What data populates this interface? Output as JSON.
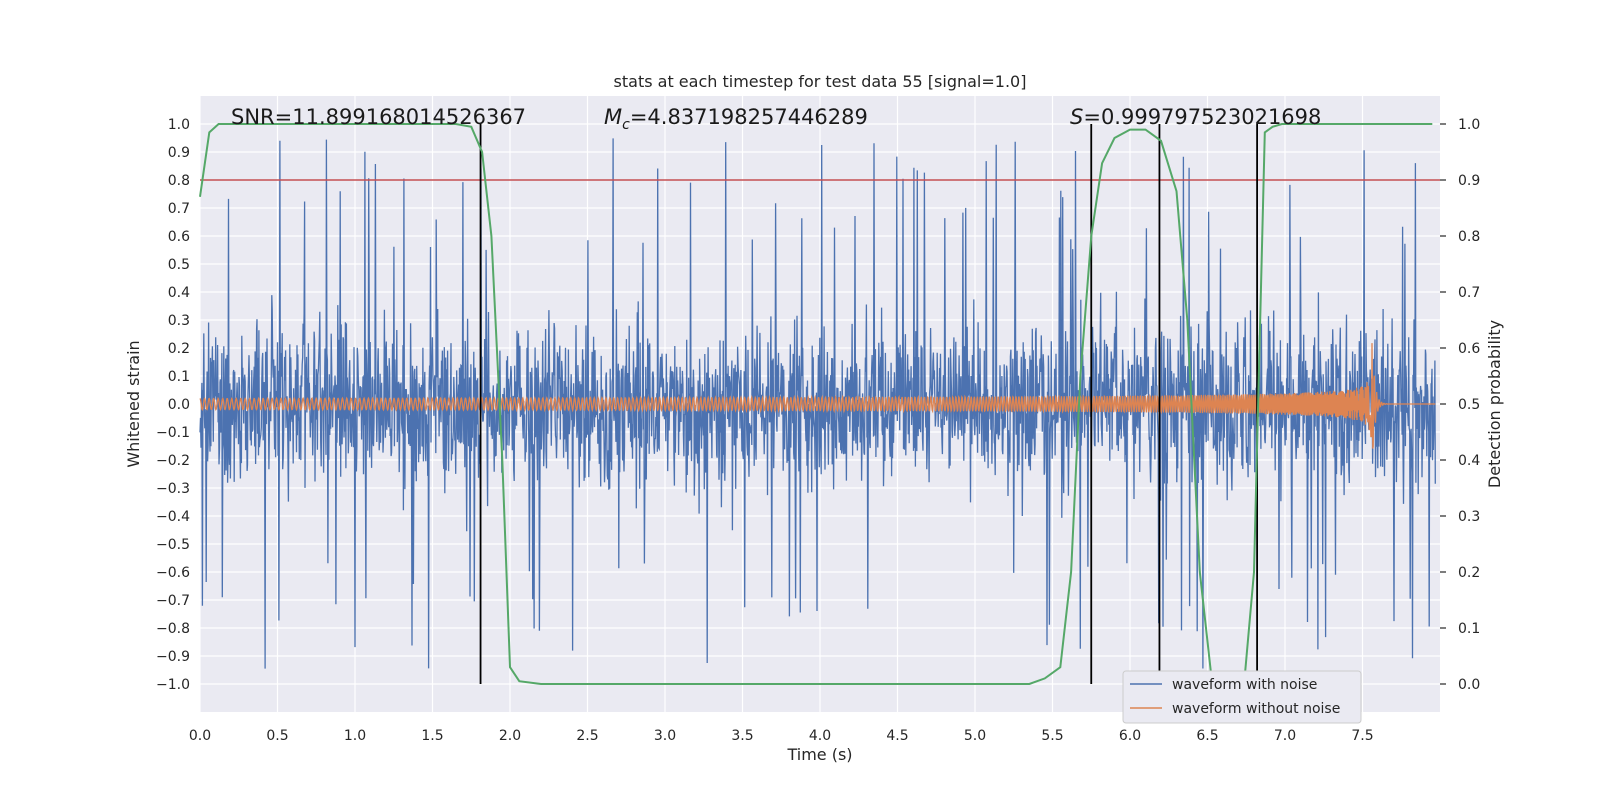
{
  "chart_data": {
    "type": "line",
    "title": "stats at each timestep for test data 55 [signal=1.0]",
    "xlabel": "Time (s)",
    "ylabel": "Whitened strain",
    "ylabel_right": "Detection probability",
    "xlim": [
      0.0,
      8.0
    ],
    "ylim": [
      -1.1,
      1.1
    ],
    "ylim_right": [
      -0.05,
      1.05
    ],
    "x_ticks": [
      "0.0",
      "0.5",
      "1.0",
      "1.5",
      "2.0",
      "2.5",
      "3.0",
      "3.5",
      "4.0",
      "4.5",
      "5.0",
      "5.5",
      "6.0",
      "6.5",
      "7.0",
      "7.5"
    ],
    "y_ticks": [
      "1.0",
      "0.9",
      "0.8",
      "0.7",
      "0.6",
      "0.5",
      "0.4",
      "0.3",
      "0.2",
      "0.1",
      "0.0",
      "−0.1",
      "−0.2",
      "−0.3",
      "−0.4",
      "−0.5",
      "−0.6",
      "−0.7",
      "−0.8",
      "−0.9",
      "−1.0"
    ],
    "y_right_ticks": [
      "1.0",
      "0.9",
      "0.8",
      "0.7",
      "0.6",
      "0.5",
      "0.4",
      "0.3",
      "0.2",
      "0.1",
      "0.0"
    ],
    "grid": true,
    "annotations": {
      "snr": "SNR=11.899168014526367",
      "mc_symbol": "M",
      "mc_sub": "c",
      "mc_value": "=4.837198257446289",
      "s_symbol": "S",
      "s_value": "=0.999797523021698"
    },
    "threshold_right": 0.9,
    "threshold_color": "#c44e52",
    "vertical_lines_x": [
      1.81,
      5.75,
      6.19,
      6.82
    ],
    "series": [
      {
        "name": "waveform with noise",
        "color": "#4c72b0",
        "description": "dense whitened noise, typical amplitude about ±0.4 with spikes up to ±0.95",
        "typical_amplitude": 0.4,
        "peak_amplitude": 0.95
      },
      {
        "name": "waveform without noise",
        "color": "#dd8452",
        "description": "chirp signal growing from ±0.02 to peak ±0.28 near t=7.56 s",
        "start_amplitude": 0.02,
        "peak_amplitude": 0.28,
        "merger_time": 7.56
      },
      {
        "name": "detection probability",
        "color": "#55a868",
        "axis": "right",
        "x": [
          0.0,
          0.06,
          0.12,
          0.3,
          0.6,
          1.0,
          1.4,
          1.65,
          1.75,
          1.82,
          1.88,
          1.95,
          2.0,
          2.06,
          2.2,
          2.5,
          3.0,
          4.0,
          5.0,
          5.35,
          5.45,
          5.55,
          5.62,
          5.68,
          5.75,
          5.82,
          5.9,
          6.0,
          6.1,
          6.2,
          6.3,
          6.37,
          6.45,
          6.55,
          6.62,
          6.72,
          6.8,
          6.87,
          6.92,
          6.98,
          7.1,
          7.5,
          7.95
        ],
        "values": [
          0.87,
          0.985,
          1.0,
          1.0,
          1.0,
          1.0,
          1.0,
          1.0,
          0.995,
          0.95,
          0.8,
          0.4,
          0.03,
          0.005,
          0.0,
          0.0,
          0.0,
          0.0,
          0.0,
          0.0,
          0.01,
          0.03,
          0.2,
          0.55,
          0.8,
          0.93,
          0.975,
          0.99,
          0.99,
          0.97,
          0.88,
          0.65,
          0.2,
          -0.05,
          -0.05,
          -0.05,
          0.2,
          0.985,
          0.995,
          1.0,
          1.0,
          1.0,
          1.0
        ]
      }
    ],
    "legend": {
      "placement": "lower-right",
      "entries": [
        "waveform with noise",
        "waveform without noise"
      ]
    }
  }
}
